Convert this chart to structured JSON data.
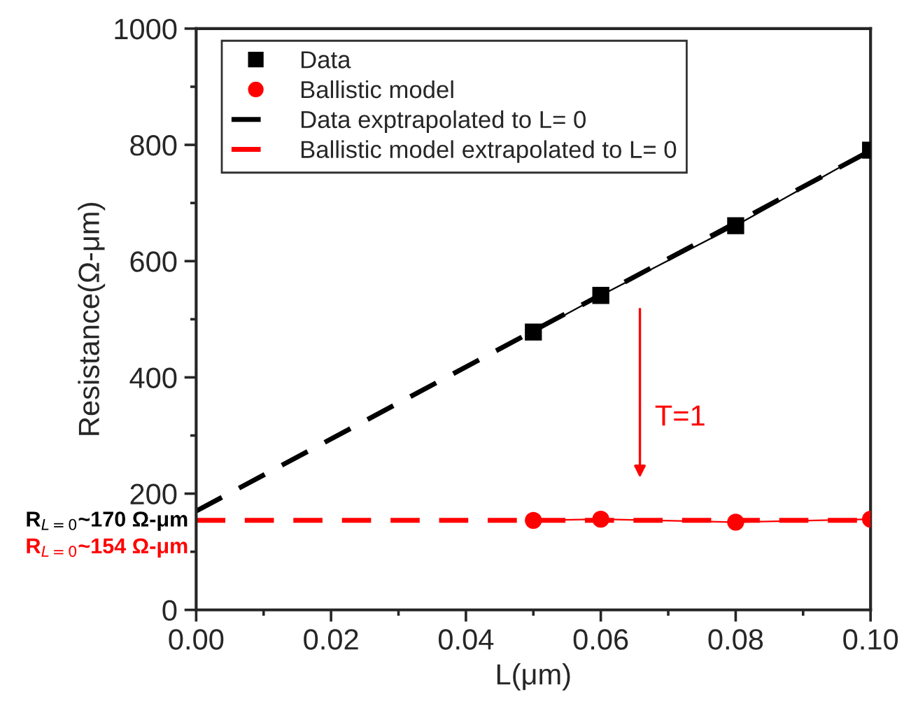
{
  "chart_data": {
    "type": "line",
    "xlabel": "L(μm)",
    "ylabel": "Resistance(Ω-μm)",
    "xlim": [
      0,
      0.1
    ],
    "ylim": [
      0,
      1000
    ],
    "xticks": [
      {
        "value": 0,
        "label": "0.00"
      },
      {
        "value": 0.02,
        "label": "0.02"
      },
      {
        "value": 0.04,
        "label": "0.04"
      },
      {
        "value": 0.06,
        "label": "0.06"
      },
      {
        "value": 0.08,
        "label": "0.08"
      },
      {
        "value": 0.1,
        "label": "0.10"
      }
    ],
    "yticks": [
      0,
      200,
      400,
      600,
      800,
      1000
    ],
    "grid": false,
    "legend": "top left",
    "series": [
      {
        "name": "Data",
        "color": "#000000",
        "x": [
          0.05,
          0.06,
          0.08,
          0.1
        ],
        "values": [
          478,
          541,
          661,
          791
        ],
        "marker": "square",
        "line_style": "solid"
      },
      {
        "name": "Ballistic model",
        "color": "#ff0000",
        "x": [
          0.05,
          0.06,
          0.08,
          0.1
        ],
        "values": [
          154,
          156,
          151,
          156
        ],
        "marker": "circle",
        "line_style": "solid"
      },
      {
        "name": "Data exptrapolated to L= 0",
        "color": "#000000",
        "x": [
          0,
          0.1
        ],
        "values": [
          170,
          790
        ],
        "marker": "none",
        "line_style": "dashed"
      },
      {
        "name": "Ballistic model extrapolated to L= 0",
        "color": "#ff0000",
        "x": [
          0,
          0.1
        ],
        "values": [
          154,
          154
        ],
        "marker": "none",
        "line_style": "dashed"
      }
    ],
    "annotations": [
      "T=1",
      {
        "text": "R$_{L=0}$~170 Ω-μm",
        "x": 0,
        "y": 170
      },
      {
        "text": "R$_{L=0}$~154 Ω-μm",
        "x": 0,
        "y": 154
      }
    ]
  }
}
